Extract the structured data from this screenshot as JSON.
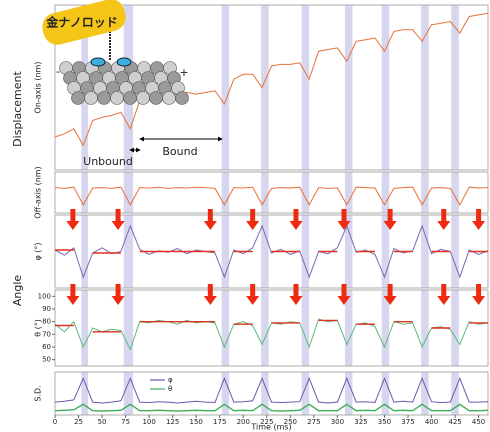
{
  "chart_data": [
    {
      "type": "line",
      "ylabel": "On-axis (nm)",
      "group_label": "Displacement",
      "x": [
        0,
        10,
        20,
        30,
        40,
        50,
        60,
        70,
        80,
        90,
        100,
        110,
        120,
        130,
        140,
        150,
        160,
        170,
        180,
        190,
        200,
        210,
        220,
        230,
        240,
        250,
        260,
        270,
        280,
        290,
        300,
        310,
        320,
        330,
        340,
        350,
        360,
        370,
        380,
        390,
        400,
        410,
        420,
        430,
        440,
        450,
        460
      ],
      "xlim": [
        0,
        460
      ],
      "ylim": [
        0,
        100
      ],
      "bands": [
        [
          28,
          35
        ],
        [
          73,
          83
        ],
        [
          177,
          185
        ],
        [
          219,
          227
        ],
        [
          262,
          270
        ],
        [
          308,
          316
        ],
        [
          347,
          355
        ],
        [
          389,
          397
        ],
        [
          421,
          429
        ]
      ],
      "series": [
        {
          "color": "#e8703a",
          "values": [
            20,
            22,
            25,
            15,
            30,
            32,
            33,
            35,
            25,
            42,
            44,
            45,
            45,
            46,
            47,
            46,
            47,
            48,
            40,
            55,
            58,
            58,
            50,
            63,
            64,
            64,
            65,
            55,
            72,
            73,
            74,
            66,
            78,
            79,
            80,
            72,
            84,
            85,
            85,
            78,
            88,
            89,
            90,
            83,
            93,
            94,
            95
          ]
        }
      ],
      "annotations": [
        "Unbound",
        "Bound"
      ]
    },
    {
      "type": "line",
      "ylabel": "Off-axis (nm)",
      "x": [
        0,
        10,
        20,
        30,
        40,
        50,
        60,
        70,
        80,
        90,
        100,
        110,
        120,
        130,
        140,
        150,
        160,
        170,
        180,
        190,
        200,
        210,
        220,
        230,
        240,
        250,
        260,
        270,
        280,
        290,
        300,
        310,
        320,
        330,
        340,
        350,
        360,
        370,
        380,
        390,
        400,
        410,
        420,
        430,
        440,
        450,
        460
      ],
      "xlim": [
        0,
        460
      ],
      "ylim": [
        0,
        100
      ],
      "bands": [
        [
          28,
          35
        ],
        [
          73,
          83
        ],
        [
          177,
          185
        ],
        [
          219,
          227
        ],
        [
          262,
          270
        ],
        [
          308,
          316
        ],
        [
          347,
          355
        ],
        [
          389,
          397
        ],
        [
          421,
          429
        ]
      ],
      "series": [
        {
          "color": "#e8703a",
          "values": [
            62,
            60,
            63,
            20,
            61,
            62,
            60,
            63,
            20,
            62,
            61,
            63,
            60,
            62,
            61,
            63,
            62,
            60,
            20,
            62,
            61,
            63,
            20,
            60,
            62,
            61,
            63,
            20,
            62,
            60,
            61,
            20,
            63,
            62,
            61,
            20,
            60,
            62,
            63,
            20,
            61,
            62,
            60,
            20,
            63,
            61,
            62
          ]
        }
      ]
    },
    {
      "type": "line",
      "ylabel": "φ (°)",
      "group_label": "Angle",
      "x": [
        0,
        10,
        20,
        30,
        40,
        50,
        60,
        70,
        80,
        90,
        100,
        110,
        120,
        130,
        140,
        150,
        160,
        170,
        180,
        190,
        200,
        210,
        220,
        230,
        240,
        250,
        260,
        270,
        280,
        290,
        300,
        310,
        320,
        330,
        340,
        350,
        360,
        370,
        380,
        390,
        400,
        410,
        420,
        430,
        440,
        450,
        460
      ],
      "xlim": [
        0,
        460
      ],
      "ylim": [
        0,
        100
      ],
      "bands": [
        [
          28,
          35
        ],
        [
          73,
          83
        ],
        [
          177,
          185
        ],
        [
          219,
          227
        ],
        [
          262,
          270
        ],
        [
          308,
          316
        ],
        [
          347,
          355
        ],
        [
          389,
          397
        ],
        [
          421,
          429
        ]
      ],
      "events": [
        19,
        67,
        165,
        210,
        256,
        307,
        356,
        413,
        450
      ],
      "event_color": "#ee2a10",
      "series": [
        {
          "color": "#7a68b8",
          "values": [
            52,
            45,
            55,
            15,
            48,
            55,
            47,
            50,
            85,
            53,
            46,
            51,
            49,
            54,
            47,
            52,
            50,
            48,
            15,
            52,
            47,
            55,
            85,
            48,
            53,
            46,
            51,
            15,
            50,
            47,
            55,
            85,
            49,
            52,
            46,
            15,
            54,
            48,
            51,
            85,
            47,
            53,
            50,
            15,
            52,
            46,
            51
          ]
        },
        {
          "color": "#e03020",
          "values": [
            52,
            52,
            52,
            null,
            48,
            48,
            48,
            48,
            null,
            50,
            50,
            50,
            50,
            50,
            50,
            50,
            50,
            50,
            null,
            50,
            50,
            50,
            null,
            50,
            50,
            50,
            50,
            null,
            50,
            50,
            50,
            null,
            50,
            50,
            50,
            null,
            50,
            50,
            50,
            null,
            50,
            50,
            50,
            null,
            50,
            50,
            50
          ]
        }
      ]
    },
    {
      "type": "line",
      "ylabel": "θ (°)",
      "x": [
        0,
        10,
        20,
        30,
        40,
        50,
        60,
        70,
        80,
        90,
        100,
        110,
        120,
        130,
        140,
        150,
        160,
        170,
        180,
        190,
        200,
        210,
        220,
        230,
        240,
        250,
        260,
        270,
        280,
        290,
        300,
        310,
        320,
        330,
        340,
        350,
        360,
        370,
        380,
        390,
        400,
        410,
        420,
        430,
        440,
        450,
        460
      ],
      "xlim": [
        0,
        460
      ],
      "ylim": [
        45,
        105
      ],
      "yticks": [
        50,
        60,
        70,
        80,
        90,
        100
      ],
      "bands": [
        [
          28,
          35
        ],
        [
          73,
          83
        ],
        [
          177,
          185
        ],
        [
          219,
          227
        ],
        [
          262,
          270
        ],
        [
          308,
          316
        ],
        [
          347,
          355
        ],
        [
          389,
          397
        ],
        [
          421,
          429
        ]
      ],
      "events": [
        19,
        67,
        165,
        210,
        256,
        307,
        356,
        413,
        450
      ],
      "event_color": "#ee2a10",
      "series": [
        {
          "color": "#5cb87a",
          "values": [
            78,
            72,
            80,
            60,
            75,
            72,
            74,
            73,
            58,
            80,
            79,
            81,
            80,
            78,
            81,
            79,
            80,
            79,
            60,
            78,
            80,
            77,
            62,
            79,
            78,
            80,
            79,
            60,
            82,
            80,
            81,
            62,
            78,
            79,
            76,
            60,
            80,
            78,
            79,
            60,
            75,
            76,
            74,
            62,
            80,
            78,
            79
          ]
        },
        {
          "color": "#e03020",
          "values": [
            77,
            77,
            77,
            null,
            72,
            72,
            72,
            72,
            null,
            80,
            80,
            80,
            80,
            80,
            80,
            80,
            80,
            80,
            null,
            78,
            78,
            78,
            null,
            79,
            79,
            79,
            79,
            null,
            81,
            81,
            81,
            null,
            78,
            78,
            78,
            null,
            80,
            80,
            80,
            null,
            75,
            75,
            75,
            null,
            79,
            79,
            79
          ]
        }
      ]
    },
    {
      "type": "line",
      "ylabel": "S.D.",
      "xlabel": "Time (ms)",
      "x": [
        0,
        10,
        20,
        30,
        40,
        50,
        60,
        70,
        80,
        90,
        100,
        110,
        120,
        130,
        140,
        150,
        160,
        170,
        180,
        190,
        200,
        210,
        220,
        230,
        240,
        250,
        260,
        270,
        280,
        290,
        300,
        310,
        320,
        330,
        340,
        350,
        360,
        370,
        380,
        390,
        400,
        410,
        420,
        430,
        440,
        450,
        460
      ],
      "xlim": [
        0,
        460
      ],
      "ylim": [
        0,
        1
      ],
      "xticks": [
        0,
        25,
        50,
        75,
        100,
        125,
        150,
        175,
        200,
        225,
        250,
        275,
        300,
        325,
        350,
        375,
        400,
        425,
        450
      ],
      "bands": [
        [
          28,
          35
        ],
        [
          73,
          83
        ],
        [
          177,
          185
        ],
        [
          219,
          227
        ],
        [
          262,
          270
        ],
        [
          308,
          316
        ],
        [
          347,
          355
        ],
        [
          389,
          397
        ],
        [
          421,
          429
        ]
      ],
      "series": [
        {
          "name": "φ",
          "color": "#6a58b0",
          "values": [
            0.3,
            0.32,
            0.35,
            0.85,
            0.3,
            0.28,
            0.3,
            0.33,
            0.85,
            0.3,
            0.29,
            0.31,
            0.3,
            0.28,
            0.3,
            0.32,
            0.3,
            0.29,
            0.85,
            0.3,
            0.31,
            0.33,
            0.85,
            0.3,
            0.29,
            0.3,
            0.31,
            0.85,
            0.3,
            0.28,
            0.3,
            0.85,
            0.3,
            0.31,
            0.29,
            0.85,
            0.3,
            0.32,
            0.3,
            0.85,
            0.31,
            0.29,
            0.3,
            0.85,
            0.3,
            0.3,
            0.31
          ]
        },
        {
          "name": "θ",
          "color": "#3cae5a",
          "values": [
            0.1,
            0.11,
            0.12,
            0.25,
            0.1,
            0.09,
            0.1,
            0.11,
            0.25,
            0.1,
            0.1,
            0.11,
            0.1,
            0.09,
            0.1,
            0.11,
            0.1,
            0.1,
            0.25,
            0.1,
            0.11,
            0.1,
            0.25,
            0.1,
            0.09,
            0.1,
            0.11,
            0.25,
            0.1,
            0.1,
            0.1,
            0.25,
            0.1,
            0.11,
            0.1,
            0.25,
            0.1,
            0.11,
            0.1,
            0.25,
            0.1,
            0.1,
            0.1,
            0.25,
            0.1,
            0.1,
            0.11
          ]
        }
      ]
    }
  ],
  "illustration": {
    "label": "金ナノロッド",
    "minus": "-",
    "plus": "+"
  }
}
